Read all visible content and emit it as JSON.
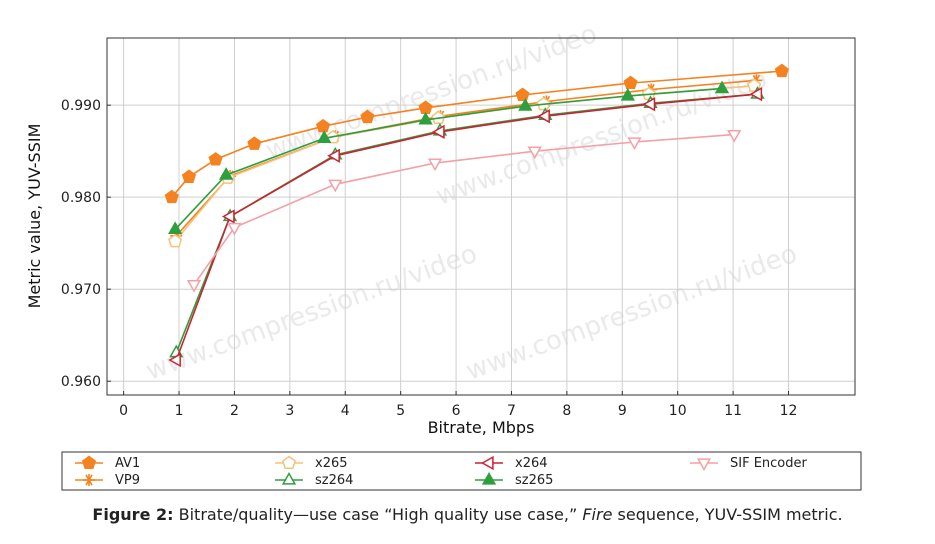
{
  "chart_data": {
    "type": "line",
    "title": "",
    "xlabel": "Bitrate, Mbps",
    "ylabel": "Metric value, YUV-SSIM",
    "xlim": [
      -0.3,
      13.2
    ],
    "ylim": [
      0.9585,
      0.9973
    ],
    "x_ticks": [
      0,
      1,
      2,
      3,
      4,
      5,
      6,
      7,
      8,
      9,
      10,
      11,
      12
    ],
    "y_ticks": [
      0.96,
      0.97,
      0.98,
      0.99
    ],
    "y_tick_labels": [
      "0.960",
      "0.970",
      "0.980",
      "0.990"
    ],
    "grid": true,
    "legend_position": "bottom",
    "series": [
      {
        "name": "AV1",
        "color": "#f58220",
        "marker": "pentagon",
        "fill": true,
        "x": [
          0.87,
          1.18,
          1.66,
          2.36,
          3.6,
          4.4,
          5.45,
          7.2,
          9.15,
          11.88
        ],
        "y": [
          0.98,
          0.9822,
          0.9841,
          0.9858,
          0.9877,
          0.9887,
          0.9897,
          0.9911,
          0.9924,
          0.9937
        ]
      },
      {
        "name": "VP9",
        "color": "#f58220",
        "marker": "asterisk",
        "fill": false,
        "x": [
          0.95,
          1.92,
          3.82,
          5.72,
          7.63,
          9.52,
          11.42
        ],
        "y": [
          0.9758,
          0.9823,
          0.9866,
          0.9888,
          0.9904,
          0.9917,
          0.9927
        ]
      },
      {
        "name": "x265",
        "color": "#f5c27a",
        "marker": "pentagon",
        "fill": false,
        "x": [
          0.93,
          1.88,
          3.78,
          5.68,
          7.58,
          9.48,
          11.38
        ],
        "y": [
          0.9752,
          0.9821,
          0.9865,
          0.9886,
          0.9901,
          0.9912,
          0.9921
        ]
      },
      {
        "name": "sz264",
        "color": "#2e9e3e",
        "marker": "triangle-up",
        "fill": false,
        "x": [
          0.95,
          1.92,
          3.82,
          5.71,
          7.61,
          9.51,
          11.44
        ],
        "y": [
          0.9631,
          0.9779,
          0.9846,
          0.9872,
          0.9889,
          0.9902,
          0.9912
        ]
      },
      {
        "name": "x264",
        "color": "#cc2233",
        "marker": "triangle-left",
        "fill": false,
        "x": [
          0.95,
          1.92,
          3.82,
          5.71,
          7.61,
          9.51,
          11.44
        ],
        "y": [
          0.9623,
          0.9779,
          0.9845,
          0.9871,
          0.9888,
          0.9901,
          0.9912
        ]
      },
      {
        "name": "sz265",
        "color": "#2e9e3e",
        "marker": "triangle-up",
        "fill": true,
        "x": [
          0.93,
          1.85,
          3.62,
          5.45,
          7.25,
          9.1,
          10.8
        ],
        "y": [
          0.9765,
          0.9824,
          0.9864,
          0.9884,
          0.9899,
          0.991,
          0.9918
        ]
      },
      {
        "name": "SIF Encoder",
        "color": "#f4a0a6",
        "marker": "triangle-down",
        "fill": false,
        "x": [
          1.27,
          2.0,
          3.82,
          5.62,
          7.42,
          9.22,
          11.02
        ],
        "y": [
          0.9705,
          0.9767,
          0.9814,
          0.9837,
          0.985,
          0.986,
          0.9868
        ]
      }
    ],
    "legend": [
      {
        "name": "AV1"
      },
      {
        "name": "x265"
      },
      {
        "name": "x264"
      },
      {
        "name": "SIF Encoder"
      },
      {
        "name": "VP9"
      },
      {
        "name": "sz264"
      },
      {
        "name": "sz265"
      }
    ],
    "watermarks": [
      "www.compression.ru/video",
      "www.compression.ru/video",
      "www.compression.ru/video",
      "www.compression.ru/video"
    ]
  },
  "caption": {
    "label": "Figure 2:",
    "before_italic": "Bitrate/quality—use case “High quality use case,” ",
    "italic": "Fire",
    "after_italic": " sequence, YUV-SSIM metric."
  }
}
